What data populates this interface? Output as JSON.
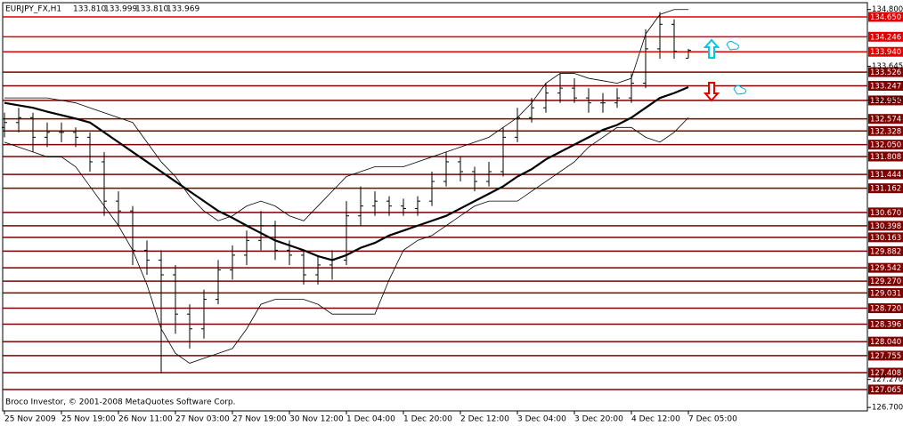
{
  "chart_data": {
    "type": "ohlc",
    "title": "EURJPY_FX,H1",
    "info_labels": [
      "133.810",
      "133.999",
      "133.810",
      "133.969"
    ],
    "footer": "Broco Investor, © 2001-2008 MetaQuotes Software Corp.",
    "categories": [
      "25 Nov 2009",
      null,
      null,
      null,
      "25 Nov 19:00",
      null,
      null,
      null,
      "26 Nov 11:00",
      null,
      null,
      null,
      "27 Nov 03:00",
      null,
      null,
      null,
      "27 Nov 19:00",
      null,
      null,
      null,
      "30 Nov 12:00",
      null,
      null,
      null,
      "1 Dec 04:00",
      null,
      null,
      null,
      "1 Dec 20:00",
      null,
      null,
      null,
      "2 Dec 12:00",
      null,
      null,
      null,
      "3 Dec 04:00",
      null,
      null,
      null,
      "3 Dec 20:00",
      null,
      null,
      null,
      "4 Dec 12:00",
      null,
      null,
      null,
      "7 Dec 05:00"
    ],
    "open": [
      132.4,
      132.5,
      132.6,
      132.2,
      132.3,
      132.3,
      132.2,
      131.7,
      130.9,
      130.7,
      129.9,
      129.7,
      129.4,
      128.6,
      128.3,
      128.9,
      129.5,
      129.8,
      130.1,
      130.4,
      129.9,
      129.8,
      129.4,
      129.6,
      129.7,
      130.6,
      130.8,
      130.9,
      130.8,
      130.75,
      130.9,
      131.3,
      131.7,
      131.5,
      131.3,
      131.5,
      132.2,
      132.6,
      132.8,
      133.1,
      133.2,
      133.0,
      132.9,
      132.9,
      133.0,
      133.3,
      134.0,
      134.5,
      133.81
    ],
    "high": [
      132.7,
      132.8,
      132.7,
      132.5,
      132.5,
      132.4,
      132.3,
      131.9,
      131.1,
      130.8,
      130.1,
      129.9,
      129.6,
      128.8,
      129.1,
      129.7,
      130.0,
      130.3,
      130.7,
      130.5,
      130.1,
      129.9,
      129.8,
      129.9,
      130.9,
      131.2,
      131.1,
      131.0,
      130.95,
      131.0,
      131.5,
      131.9,
      131.8,
      131.6,
      131.7,
      132.4,
      132.8,
      133.0,
      133.3,
      133.5,
      133.4,
      133.2,
      133.1,
      133.2,
      133.5,
      134.4,
      134.75,
      134.6,
      133.999
    ],
    "low": [
      132.2,
      132.3,
      131.9,
      132.0,
      132.1,
      132.0,
      131.5,
      130.6,
      130.4,
      129.6,
      129.4,
      127.4,
      128.2,
      127.9,
      128.1,
      128.8,
      129.3,
      129.6,
      129.9,
      129.7,
      129.6,
      129.2,
      129.2,
      129.3,
      129.6,
      130.4,
      130.6,
      130.6,
      130.6,
      130.6,
      130.8,
      131.2,
      131.3,
      131.1,
      131.2,
      131.4,
      132.1,
      132.5,
      132.7,
      132.9,
      132.9,
      132.7,
      132.7,
      132.8,
      132.9,
      133.2,
      133.8,
      133.8,
      133.81
    ],
    "close": [
      132.5,
      132.6,
      132.2,
      132.3,
      132.3,
      132.2,
      131.7,
      130.9,
      130.7,
      129.9,
      129.7,
      129.4,
      128.6,
      128.3,
      128.9,
      129.5,
      129.8,
      130.1,
      130.4,
      129.9,
      129.8,
      129.4,
      129.6,
      129.7,
      130.6,
      130.8,
      130.9,
      130.8,
      130.75,
      130.9,
      131.3,
      131.7,
      131.5,
      131.3,
      131.5,
      132.2,
      132.6,
      132.8,
      133.1,
      133.2,
      133.0,
      132.9,
      132.9,
      133.0,
      133.3,
      134.0,
      134.5,
      133.95,
      133.969
    ],
    "color": "#000000",
    "overlays": [
      {
        "color": "#000000",
        "width": 2.2,
        "values": [
          132.9,
          132.85,
          132.8,
          132.72,
          132.65,
          132.58,
          132.5,
          132.3,
          132.1,
          131.9,
          131.7,
          131.5,
          131.3,
          131.1,
          130.9,
          130.7,
          130.56,
          130.4,
          130.25,
          130.1,
          130.0,
          129.9,
          129.78,
          129.7,
          129.8,
          129.95,
          130.05,
          130.2,
          130.3,
          130.4,
          130.5,
          130.6,
          130.75,
          130.9,
          131.05,
          131.2,
          131.4,
          131.55,
          131.75,
          131.9,
          132.05,
          132.2,
          132.35,
          132.45,
          132.6,
          132.8,
          133.0,
          133.1,
          133.22
        ]
      },
      {
        "color": "#000000",
        "width": 0.8,
        "values": [
          133.0,
          133.0,
          133.0,
          133.0,
          132.95,
          132.9,
          132.8,
          132.7,
          132.6,
          132.5,
          132.1,
          131.7,
          131.4,
          131.0,
          130.7,
          130.5,
          130.6,
          130.8,
          130.9,
          130.8,
          130.6,
          130.5,
          130.8,
          131.1,
          131.4,
          131.5,
          131.6,
          131.6,
          131.6,
          131.7,
          131.8,
          131.9,
          132.0,
          132.1,
          132.2,
          132.4,
          132.6,
          132.9,
          133.3,
          133.5,
          133.5,
          133.4,
          133.35,
          133.3,
          133.4,
          134.3,
          134.7,
          134.8,
          134.8
        ]
      },
      {
        "color": "#000000",
        "width": 0.8,
        "values": [
          132.1,
          132.0,
          131.9,
          131.8,
          131.8,
          131.6,
          131.2,
          130.8,
          130.4,
          129.9,
          129.2,
          128.3,
          127.8,
          127.6,
          127.7,
          127.8,
          127.9,
          128.3,
          128.8,
          128.9,
          128.9,
          128.9,
          128.8,
          128.6,
          128.6,
          128.6,
          128.6,
          129.3,
          129.9,
          130.1,
          130.2,
          130.4,
          130.6,
          130.8,
          130.9,
          130.9,
          130.9,
          131.1,
          131.3,
          131.5,
          131.7,
          132.0,
          132.2,
          132.4,
          132.4,
          132.2,
          132.1,
          132.3,
          132.6
        ]
      }
    ],
    "levels": [
      {
        "value": 134.65,
        "label": "134.650",
        "color": "#e00000"
      },
      {
        "value": 134.246,
        "label": "134.246",
        "color": "#e00000"
      },
      {
        "value": 133.94,
        "label": "133.940",
        "color": "#e00000"
      },
      {
        "value": 133.526,
        "label": "133.526",
        "color": "#800000"
      },
      {
        "value": 133.247,
        "label": "133.247",
        "color": "#800000"
      },
      {
        "value": 132.95,
        "label": "132.950",
        "color": "#800000"
      },
      {
        "value": 132.574,
        "label": "132.574",
        "color": "#800000"
      },
      {
        "value": 132.328,
        "label": "132.328",
        "color": "#800000"
      },
      {
        "value": 132.05,
        "label": "132.050",
        "color": "#800000"
      },
      {
        "value": 131.808,
        "label": "131.808",
        "color": "#800000"
      },
      {
        "value": 131.444,
        "label": "131.444",
        "color": "#800000"
      },
      {
        "value": 131.162,
        "label": "131.162",
        "color": "#800000"
      },
      {
        "value": 130.67,
        "label": "130.670",
        "color": "#800000"
      },
      {
        "value": 130.398,
        "label": "130.398",
        "color": "#800000"
      },
      {
        "value": 130.163,
        "label": "130.163",
        "color": "#800000"
      },
      {
        "value": 129.882,
        "label": "129.882",
        "color": "#800000"
      },
      {
        "value": 129.542,
        "label": "129.542",
        "color": "#800000"
      },
      {
        "value": 129.27,
        "label": "129.270",
        "color": "#800000"
      },
      {
        "value": 129.031,
        "label": "129.031",
        "color": "#800000"
      },
      {
        "value": 128.72,
        "label": "128.720",
        "color": "#800000"
      },
      {
        "value": 128.396,
        "label": "128.396",
        "color": "#800000"
      },
      {
        "value": 128.04,
        "label": "128.040",
        "color": "#800000"
      },
      {
        "value": 127.755,
        "label": "127.755",
        "color": "#800000"
      },
      {
        "value": 127.408,
        "label": "127.408",
        "color": "#800000"
      },
      {
        "value": 127.065,
        "label": "127.065",
        "color": "#800000"
      }
    ],
    "ylim": [
      126.63,
      134.94
    ],
    "yticks": [
      {
        "value": 134.8,
        "label": "134.800"
      },
      {
        "value": 133.645,
        "label": "133.645"
      },
      {
        "value": 132.955,
        "label": "132.955"
      },
      {
        "value": 127.27,
        "label": "127.270"
      },
      {
        "value": 126.7,
        "label": "126.700"
      }
    ],
    "grid": false
  }
}
